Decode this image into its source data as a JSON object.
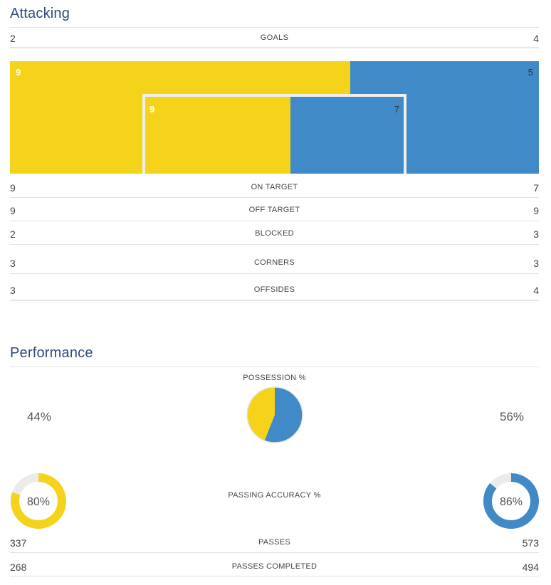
{
  "sections": {
    "attacking": "Attacking",
    "performance": "Performance"
  },
  "colors": {
    "home": "#f6d31b",
    "away": "#3f8ac7",
    "ring_bg": "#ebebeb",
    "title": "#2f4a7a"
  },
  "goals": {
    "label": "GOALS",
    "home": "2",
    "away": "4"
  },
  "shots_outside": {
    "home": 9,
    "away": 5
  },
  "shots_inside": {
    "home": 9,
    "away": 7
  },
  "stats": [
    {
      "label": "ON TARGET",
      "home": "9",
      "away": "7"
    },
    {
      "label": "OFF TARGET",
      "home": "9",
      "away": "9"
    },
    {
      "label": "BLOCKED",
      "home": "2",
      "away": "3"
    },
    {
      "label": "CORNERS",
      "home": "3",
      "away": "3"
    },
    {
      "label": "OFFSIDES",
      "home": "3",
      "away": "4"
    }
  ],
  "possession": {
    "label": "POSSESSION %",
    "home": 44,
    "away": 56,
    "home_text": "44%",
    "away_text": "56%"
  },
  "passing_accuracy": {
    "label": "PASSING ACCURACY %",
    "home": 80,
    "away": 86,
    "home_text": "80%",
    "away_text": "86%"
  },
  "passes": {
    "label": "PASSES",
    "home": "337",
    "away": "573"
  },
  "passes_completed": {
    "label": "PASSES COMPLETED",
    "home": "268",
    "away": "494"
  }
}
